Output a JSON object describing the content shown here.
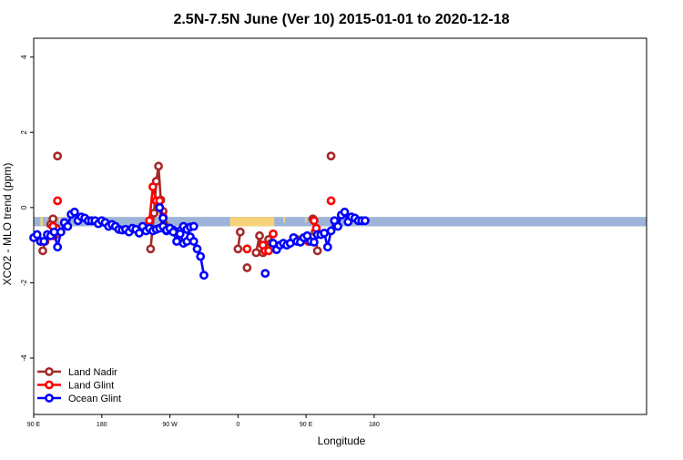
{
  "chart_data": {
    "type": "line",
    "title": "2.5N-7.5N June (Ver 10)   2015-01-01 to 2020-12-18",
    "xlabel": "Longitude",
    "ylabel": "XCO2 - MLO trend (ppm)",
    "xlim": [
      -90,
      180
    ],
    "ylim": [
      -5.5,
      4.5
    ],
    "x_ticks": [
      {
        "value": -90,
        "label": "90 E"
      },
      {
        "value": -60,
        "label": "180"
      },
      {
        "value": -30,
        "label": "90 W"
      },
      {
        "value": 0,
        "label": "0"
      },
      {
        "value": 30,
        "label": "90 E"
      },
      {
        "value": 60,
        "label": "180"
      }
    ],
    "y_ticks": [
      {
        "value": -4,
        "label": "-4"
      },
      {
        "value": -2,
        "label": "-2"
      },
      {
        "value": 0,
        "label": "0"
      },
      {
        "value": 2,
        "label": "2"
      },
      {
        "value": 4,
        "label": "4"
      }
    ],
    "colors": {
      "land_nadir": "#A52A2A",
      "land_glint": "#FF0000",
      "ocean_glint": "#0000FF",
      "band_ocean": "#9DB4D8",
      "band_land": "#F6D27A"
    },
    "legend_position": "bottom-left",
    "series": [
      {
        "name": "Land Nadir",
        "color": "#A52A2A",
        "segments": [
          [
            [
              -86.0,
              -1.15
            ],
            [
              -85.0,
              -0.9
            ]
          ],
          [
            [
              -82.5,
              -0.45
            ],
            [
              -81.5,
              -0.3
            ],
            [
              -80.0,
              -0.55
            ]
          ],
          [
            [
              -79.5,
              1.37
            ]
          ],
          [
            [
              -38.5,
              -1.1
            ],
            [
              -37.0,
              -0.15
            ],
            [
              -36.0,
              0.7
            ],
            [
              -35.0,
              1.1
            ],
            [
              -34.0,
              0.2
            ],
            [
              -33.0,
              -0.1
            ],
            [
              -32.5,
              -0.45
            ]
          ],
          [
            [
              1.0,
              -0.65
            ],
            [
              0.0,
              -1.1
            ]
          ],
          [
            [
              4.0,
              -1.6
            ]
          ],
          [
            [
              8.0,
              -1.2
            ],
            [
              9.5,
              -0.75
            ],
            [
              11.0,
              -1.2
            ]
          ],
          [
            [
              13.5,
              -0.85
            ],
            [
              14.5,
              -0.95
            ]
          ],
          [
            [
              26.0,
              -0.85
            ]
          ],
          [
            [
              33.0,
              -0.3
            ],
            [
              34.0,
              -0.65
            ],
            [
              35.0,
              -1.15
            ]
          ],
          [
            [
              41.0,
              1.37
            ]
          ]
        ]
      },
      {
        "name": "Land Glint",
        "color": "#FF0000",
        "segments": [
          [
            [
              -87.0,
              -0.9
            ]
          ],
          [
            [
              -81.5,
              -0.5
            ],
            [
              -81.0,
              -0.75
            ]
          ],
          [
            [
              -79.5,
              0.18
            ]
          ],
          [
            [
              -39.0,
              -0.35
            ],
            [
              -37.5,
              0.55
            ],
            [
              -36.0,
              0.18
            ],
            [
              -34.5,
              0.18
            ],
            [
              -33.0,
              -0.25
            ]
          ],
          [
            [
              4.0,
              -1.1
            ]
          ],
          [
            [
              11.0,
              -1.0
            ],
            [
              12.0,
              -1.15
            ],
            [
              13.5,
              -1.15
            ]
          ],
          [
            [
              15.5,
              -0.7
            ]
          ],
          [
            [
              31.0,
              -0.9
            ]
          ],
          [
            [
              33.5,
              -0.35
            ],
            [
              34.5,
              -0.55
            ]
          ],
          [
            [
              41.0,
              0.18
            ]
          ]
        ]
      },
      {
        "name": "Ocean Glint",
        "color": "#0000FF",
        "segments": [
          [
            [
              -90.0,
              -0.8
            ],
            [
              -88.5,
              -0.72
            ],
            [
              -87.0,
              -0.9
            ],
            [
              -85.5,
              -0.9
            ],
            [
              -84.0,
              -0.72
            ],
            [
              -82.5,
              -0.75
            ],
            [
              -81.0,
              -0.65
            ],
            [
              -79.5,
              -1.05
            ],
            [
              -78.0,
              -0.65
            ],
            [
              -76.5,
              -0.4
            ],
            [
              -75.0,
              -0.5
            ],
            [
              -73.5,
              -0.18
            ],
            [
              -72.0,
              -0.12
            ],
            [
              -70.5,
              -0.35
            ],
            [
              -69.0,
              -0.25
            ],
            [
              -67.5,
              -0.28
            ],
            [
              -66.0,
              -0.35
            ],
            [
              -64.5,
              -0.35
            ],
            [
              -63.0,
              -0.35
            ],
            [
              -61.5,
              -0.43
            ],
            [
              -60.0,
              -0.35
            ],
            [
              -58.5,
              -0.4
            ],
            [
              -57.0,
              -0.5
            ],
            [
              -55.5,
              -0.45
            ],
            [
              -54.0,
              -0.5
            ],
            [
              -52.5,
              -0.58
            ],
            [
              -51.0,
              -0.6
            ],
            [
              -49.5,
              -0.58
            ],
            [
              -48.0,
              -0.65
            ],
            [
              -46.5,
              -0.55
            ],
            [
              -45.0,
              -0.58
            ],
            [
              -43.5,
              -0.68
            ],
            [
              -42.0,
              -0.5
            ],
            [
              -40.5,
              -0.62
            ],
            [
              -39.0,
              -0.55
            ],
            [
              -37.5,
              -0.62
            ],
            [
              -36.0,
              -0.58
            ],
            [
              -34.5,
              -0.55
            ],
            [
              -33.0,
              -0.5
            ],
            [
              -31.5,
              -0.62
            ],
            [
              -30.0,
              -0.55
            ],
            [
              -28.5,
              -0.6
            ],
            [
              -27.0,
              -0.68
            ],
            [
              -25.5,
              -0.62
            ],
            [
              -24.0,
              -0.5
            ],
            [
              -22.5,
              -0.58
            ],
            [
              -21.0,
              -0.52
            ],
            [
              -19.5,
              -0.5
            ]
          ],
          [
            [
              -34.5,
              0.0
            ],
            [
              -33.0,
              -0.28
            ],
            [
              -31.5,
              -0.6
            ],
            [
              -30.0,
              -0.55
            ],
            [
              -28.5,
              -0.65
            ],
            [
              -27.0,
              -0.9
            ],
            [
              -25.5,
              -0.7
            ],
            [
              -24.0,
              -0.95
            ],
            [
              -22.5,
              -0.9
            ],
            [
              -21.0,
              -0.78
            ],
            [
              -19.5,
              -0.9
            ],
            [
              -18.0,
              -1.1
            ],
            [
              -16.5,
              -1.3
            ],
            [
              -15.0,
              -1.8
            ]
          ],
          [
            [
              12.0,
              -1.75
            ]
          ],
          [
            [
              15.5,
              -0.95
            ],
            [
              17.0,
              -1.12
            ],
            [
              18.5,
              -1.0
            ],
            [
              20.0,
              -0.95
            ],
            [
              21.5,
              -1.0
            ],
            [
              23.0,
              -0.95
            ],
            [
              24.5,
              -0.8
            ],
            [
              26.0,
              -0.9
            ],
            [
              27.5,
              -0.92
            ],
            [
              29.0,
              -0.8
            ],
            [
              30.5,
              -0.75
            ],
            [
              32.0,
              -0.9
            ],
            [
              33.5,
              -0.92
            ],
            [
              35.0,
              -0.72
            ],
            [
              36.5,
              -0.72
            ],
            [
              38.0,
              -0.68
            ],
            [
              39.5,
              -1.05
            ],
            [
              41.0,
              -0.62
            ],
            [
              42.5,
              -0.35
            ],
            [
              44.0,
              -0.5
            ],
            [
              45.5,
              -0.2
            ],
            [
              47.0,
              -0.12
            ],
            [
              48.5,
              -0.38
            ],
            [
              50.0,
              -0.25
            ],
            [
              51.5,
              -0.28
            ],
            [
              53.0,
              -0.35
            ],
            [
              54.5,
              -0.35
            ],
            [
              56.0,
              -0.35
            ]
          ]
        ]
      }
    ]
  }
}
